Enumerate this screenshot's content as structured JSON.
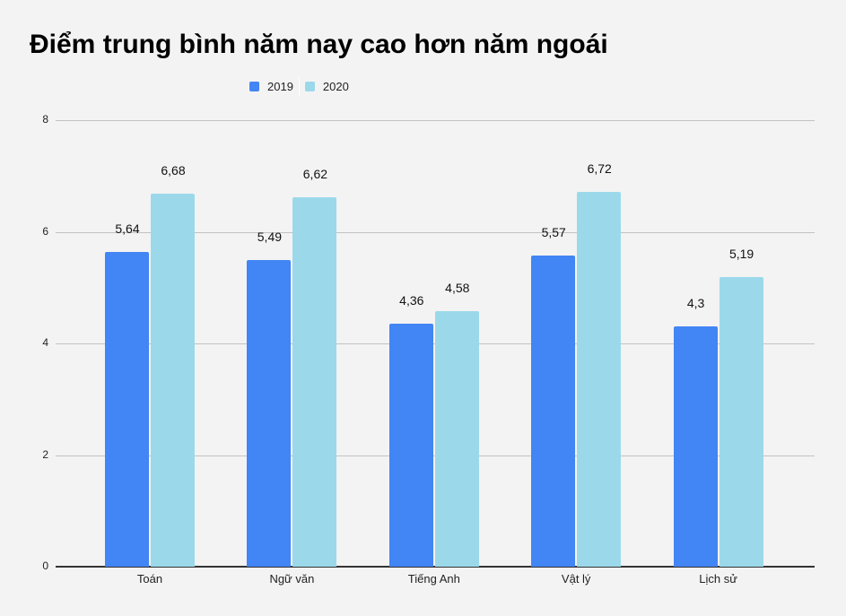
{
  "chart_data": {
    "type": "bar",
    "title": "Điểm trung bình năm nay cao hơn năm ngoái",
    "categories": [
      "Toán",
      "Ngữ văn",
      "Tiếng Anh",
      "Vật lý",
      "Lịch sử"
    ],
    "series": [
      {
        "name": "2019",
        "color": "#4285f4",
        "values": [
          5.64,
          5.49,
          4.36,
          5.57,
          4.3
        ],
        "labels": [
          "5,64",
          "5,49",
          "4,36",
          "5,57",
          "4,3"
        ]
      },
      {
        "name": "2020",
        "color": "#9bd9ea",
        "values": [
          6.68,
          6.62,
          4.58,
          6.72,
          5.19
        ],
        "labels": [
          "6,68",
          "6,62",
          "4,58",
          "6,72",
          "5,19"
        ]
      }
    ],
    "xlabel": "",
    "ylabel": "",
    "ylim": [
      0,
      8
    ],
    "yticks": [
      "0",
      "2",
      "4",
      "6",
      "8"
    ],
    "grid": true,
    "legend_position": "top"
  }
}
